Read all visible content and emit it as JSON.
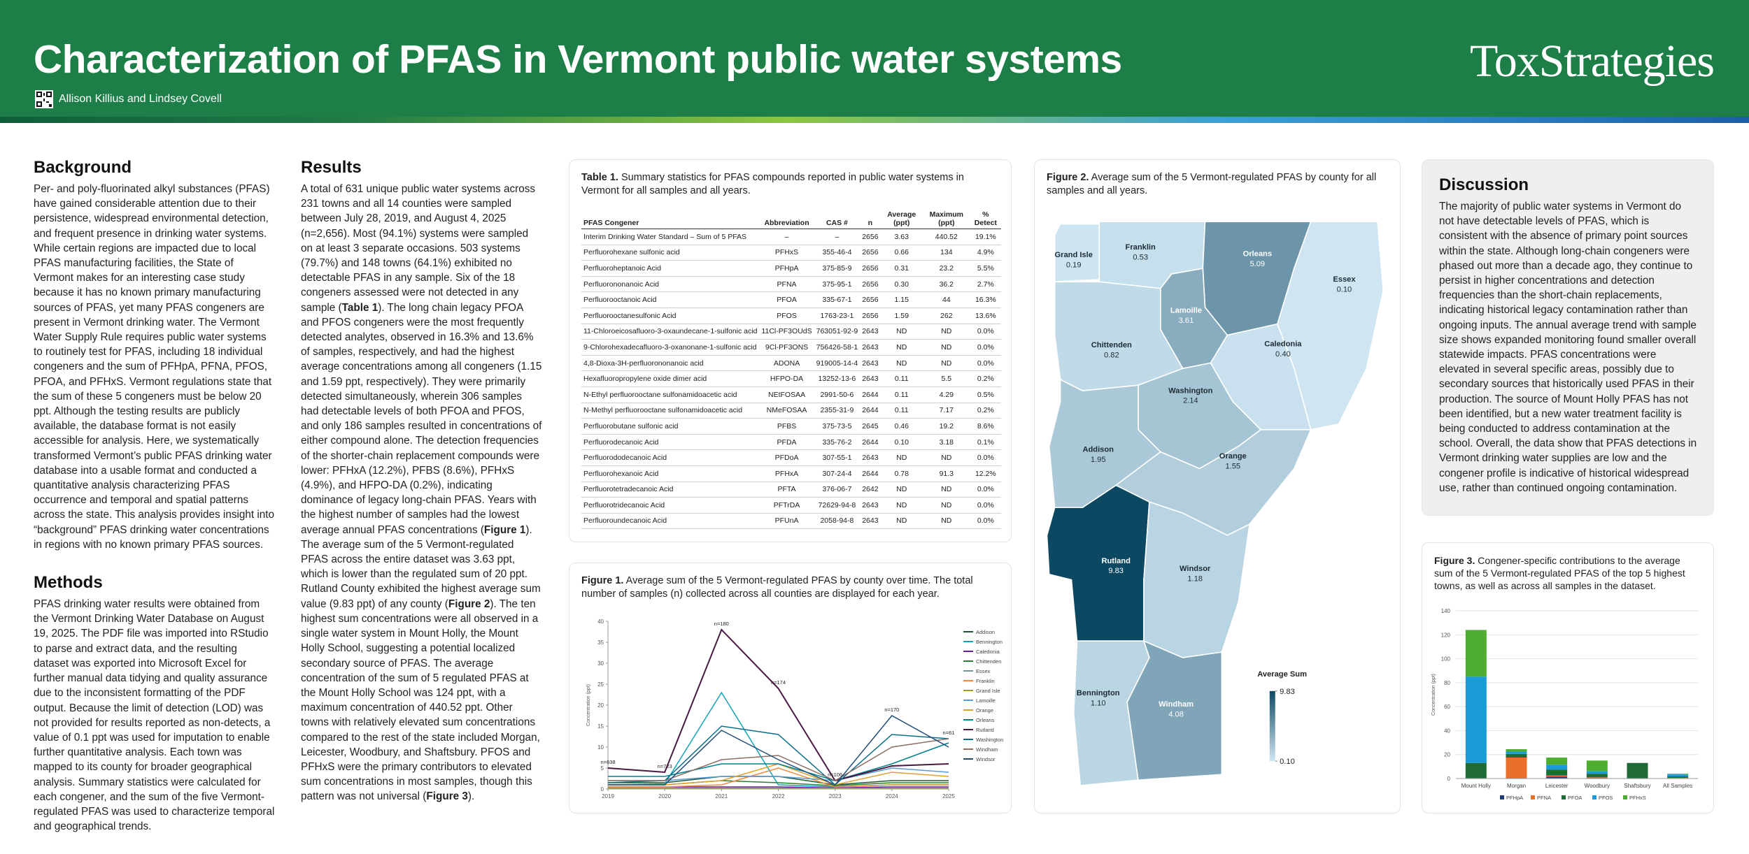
{
  "header": {
    "title": "Characterization of PFAS in Vermont public water systems",
    "authors": "Allison Killius and Lindsey Covell",
    "logo": "ToxStrategies"
  },
  "background": {
    "heading": "Background",
    "text": "Per- and poly-fluorinated alkyl substances (PFAS) have gained considerable attention due to their persistence, widespread environmental detection, and frequent presence in drinking water systems. While certain regions are impacted due to local PFAS manufacturing facilities, the State of Vermont makes for an interesting case study because it has no known primary manufacturing sources of PFAS, yet many PFAS congeners are present in Vermont drinking water.  The Vermont Water Supply Rule requires public water systems to routinely test for PFAS, including 18 individual congeners and the sum of PFHpA, PFNA, PFOS, PFOA, and PFHxS. Vermont regulations state that the sum of these 5 congeners must be below 20 ppt. Although the testing results are publicly available, the database format is not easily accessible for analysis. Here, we systematically transformed Vermont’s public PFAS drinking water database into a usable format and conducted a quantitative analysis characterizing PFAS occurrence and temporal and spatial patterns across the state. This analysis provides insight into “background” PFAS drinking water concentrations in regions with no known primary PFAS sources."
  },
  "methods": {
    "heading": "Methods",
    "text": "PFAS drinking water results were obtained from the Vermont Drinking Water Database on August 19, 2025. The PDF file was imported into RStudio to parse and extract data, and the resulting dataset was exported into Microsoft Excel for further manual data tidying and quality assurance due to the inconsistent formatting of the PDF output. Because the limit of detection (LOD) was not provided for results reported as non-detects, a value of 0.1 ppt was used for imputation to enable further quantitative analysis. Each town was mapped to its county for broader geographical analysis. Summary statistics were calculated for each congener, and the sum of the five Vermont-regulated PFAS was used to characterize temporal and geographical trends."
  },
  "results": {
    "heading": "Results",
    "text": [
      "A total of 631 unique public water systems across 231 towns and all 14 counties were sampled between July 28, 2019, and August 4, 2025 (n=2,656). Most (94.1%) systems were sampled on at least 3 separate occasions. 503 systems (79.7%) and 148 towns (64.1%) exhibited no detectable PFAS in any sample. Six of the 18 congeners assessed were not detected in any sample (",
      "Table 1",
      "). The long chain legacy PFOA and PFOS congeners were the most frequently detected analytes, observed in 16.3% and 13.6% of samples, respectively, and had the highest average concentrations among all congeners (1.15 and 1.59 ppt, respectively). They were primarily detected simultaneously, wherein 306 samples had detectable levels of both PFOA and PFOS, and only 186 samples resulted in concentrations of either compound alone. The detection frequencies of the shorter-chain replacement compounds were lower: PFHxA (12.2%), PFBS (8.6%), PFHxS (4.9%), and HFPO-DA (0.2%), indicating dominance of legacy long-chain PFAS. Years with the highest number of samples had the lowest average annual PFAS concentrations (",
      "Figure 1",
      "). The average sum of the 5 Vermont-regulated PFAS across the entire dataset was 3.63 ppt, which is lower than the regulated sum of 20 ppt. Rutland County exhibited the highest average sum value (9.83 ppt) of any county (",
      "Figure 2",
      "). The ten highest sum concentrations were all observed in a single water system in Mount Holly, the Mount Holly School, suggesting a potential localized secondary source of PFAS. The average concentration of the sum of 5 regulated PFAS at the Mount Holly School was 124 ppt, with a maximum concentration of 440.52 ppt. Other towns with relatively elevated sum concentrations compared to the rest of the state included Morgan, Leicester, Woodbury, and Shaftsbury. PFOS and PFHxS were the primary contributors to elevated sum concentrations in most samples, though this pattern was not universal (",
      "Figure 3",
      ")."
    ]
  },
  "discussion": {
    "heading": "Discussion",
    "text": "The majority of public water systems in Vermont do not have detectable levels of PFAS, which is consistent with the absence of primary point sources within the state. Although long-chain congeners were phased out more than a decade ago, they continue to persist in higher concentrations and detection frequencies than the short-chain replacements, indicating historical legacy contamination rather than ongoing inputs. The annual average trend with sample size shows expanded monitoring found smaller overall statewide impacts. PFAS concentrations were elevated in several specific areas, possibly due to secondary sources that historically used PFAS in their production. The source of Mount Holly PFAS has not been identified, but a new water treatment facility is being conducted to address contamination at the school. Overall, the data show that PFAS detections in Vermont drinking water supplies are low and the congener profile is indicative of historical widespread use, rather than continued ongoing contamination."
  },
  "table": {
    "caption_label": "Table 1.",
    "caption": "Summary statistics for PFAS compounds reported in public water systems in Vermont for all samples and all years.",
    "columns": [
      "PFAS Congener",
      "Abbreviation",
      "CAS #",
      "n",
      "Average (ppt)",
      "Maximum (ppt)",
      "% Detect"
    ],
    "rows": [
      [
        "Interim Drinking Water Standard – Sum of 5 PFAS",
        "–",
        "–",
        "2656",
        "3.63",
        "440.52",
        "19.1%"
      ],
      [
        "Perfluorohexane sulfonic acid",
        "PFHxS",
        "355-46-4",
        "2656",
        "0.66",
        "134",
        "4.9%"
      ],
      [
        "Perfluoroheptanoic Acid",
        "PFHpA",
        "375-85-9",
        "2656",
        "0.31",
        "23.2",
        "5.5%"
      ],
      [
        "Perfluorononanoic Acid",
        "PFNA",
        "375-95-1",
        "2656",
        "0.30",
        "36.2",
        "2.7%"
      ],
      [
        "Perfluorooctanoic Acid",
        "PFOA",
        "335-67-1",
        "2656",
        "1.15",
        "44",
        "16.3%"
      ],
      [
        "Perfluorooctanesulfonic Acid",
        "PFOS",
        "1763-23-1",
        "2656",
        "1.59",
        "262",
        "13.6%"
      ],
      [
        "11-Chloroeicosafluoro-3-oxaundecane-1-sulfonic acid",
        "11Cl-PF3OUdS",
        "763051-92-9",
        "2643",
        "ND",
        "ND",
        "0.0%"
      ],
      [
        "9-Chlorohexadecafluoro-3-oxanonane-1-sulfonic acid",
        "9Cl-PF3ONS",
        "756426-58-1",
        "2643",
        "ND",
        "ND",
        "0.0%"
      ],
      [
        "4,8-Dioxa-3H-perfluorononanoic acid",
        "ADONA",
        "919005-14-4",
        "2643",
        "ND",
        "ND",
        "0.0%"
      ],
      [
        "Hexafluoropropylene oxide dimer acid",
        "HFPO-DA",
        "13252-13-6",
        "2643",
        "0.11",
        "5.5",
        "0.2%"
      ],
      [
        "N-Ethyl perfluorooctane sulfonamidoacetic acid",
        "NEtFOSAA",
        "2991-50-6",
        "2644",
        "0.11",
        "4.29",
        "0.5%"
      ],
      [
        "N-Methyl perfluorooctane sulfonamidoacetic acid",
        "NMeFOSAA",
        "2355-31-9",
        "2644",
        "0.11",
        "7.17",
        "0.2%"
      ],
      [
        "Perfluorobutane sulfonic acid",
        "PFBS",
        "375-73-5",
        "2645",
        "0.46",
        "19.2",
        "8.6%"
      ],
      [
        "Perfluorodecanoic Acid",
        "PFDA",
        "335-76-2",
        "2644",
        "0.10",
        "3.18",
        "0.1%"
      ],
      [
        "Perfluorododecanoic Acid",
        "PFDoA",
        "307-55-1",
        "2643",
        "ND",
        "ND",
        "0.0%"
      ],
      [
        "Perfluorohexanoic Acid",
        "PFHxA",
        "307-24-4",
        "2644",
        "0.78",
        "91.3",
        "12.2%"
      ],
      [
        "Perfluorotetradecanoic Acid",
        "PFTA",
        "376-06-7",
        "2642",
        "ND",
        "ND",
        "0.0%"
      ],
      [
        "Perfluorotridecanoic Acid",
        "PFTrDA",
        "72629-94-8",
        "2643",
        "ND",
        "ND",
        "0.0%"
      ],
      [
        "Perfluoroundecanoic Acid",
        "PFUnA",
        "2058-94-8",
        "2643",
        "ND",
        "ND",
        "0.0%"
      ]
    ]
  },
  "chart_data": [
    {
      "type": "line",
      "caption_label": "Figure 1.",
      "title": "Average sum of the 5 Vermont-regulated PFAS by county over time. The total number of samples (n) collected across all counties are displayed for each year.",
      "y_label": "Concentration (ppt)",
      "x": [
        2019,
        2020,
        2021,
        2022,
        2023,
        2024,
        2025
      ],
      "xlim": [
        2019,
        2025
      ],
      "xticks": [
        2019,
        2020,
        2021,
        2022,
        2023,
        2024,
        2025
      ],
      "ylim": [
        0,
        40
      ],
      "yticks": [
        0,
        5,
        10,
        15,
        20,
        25,
        30,
        35,
        40
      ],
      "series": [
        {
          "name": "Addison",
          "color": "#1e5631",
          "values": [
            1.5,
            1.5,
            3,
            3,
            1,
            2,
            2
          ]
        },
        {
          "name": "Bennington",
          "color": "#17a2b8",
          "values": [
            1,
            1.2,
            23,
            1,
            0.5,
            1,
            1
          ]
        },
        {
          "name": "Caledonia",
          "color": "#6a1b9a",
          "values": [
            0.5,
            0.5,
            0.5,
            0.5,
            0.3,
            0.5,
            0.5
          ]
        },
        {
          "name": "Chittenden",
          "color": "#2e7d32",
          "values": [
            1,
            1,
            2,
            1.5,
            0.8,
            1.5,
            1.5
          ]
        },
        {
          "name": "Essex",
          "color": "#78909c",
          "values": [
            0.2,
            0.2,
            0.2,
            0.2,
            0.2,
            0.2,
            0.2
          ]
        },
        {
          "name": "Franklin",
          "color": "#ef8a3c",
          "values": [
            0.5,
            0.5,
            1,
            5,
            0.5,
            1,
            1
          ]
        },
        {
          "name": "Grand Isle",
          "color": "#9e9d24",
          "values": [
            0.2,
            0.2,
            0.2,
            0.2,
            0.2,
            0.2,
            0.2
          ]
        },
        {
          "name": "Lamoille",
          "color": "#5c9bd1",
          "values": [
            2,
            2,
            3,
            3,
            2,
            5,
            4
          ]
        },
        {
          "name": "Orange",
          "color": "#e0a030",
          "values": [
            1,
            1,
            2,
            6,
            1,
            4,
            3
          ]
        },
        {
          "name": "Orleans",
          "color": "#00838f",
          "values": [
            3,
            3,
            6,
            6,
            2,
            6,
            11
          ]
        },
        {
          "name": "Rutland",
          "color": "#4a1842",
          "values": [
            5,
            4,
            38,
            24,
            2,
            5.5,
            6
          ]
        },
        {
          "name": "Washington",
          "color": "#0b6e8a",
          "values": [
            1.5,
            2,
            15,
            13,
            1,
            13,
            12
          ]
        },
        {
          "name": "Windham",
          "color": "#8d6e63",
          "values": [
            2,
            2,
            7,
            8,
            2,
            10,
            12
          ]
        },
        {
          "name": "Windsor",
          "color": "#1f4e79",
          "values": [
            1,
            1,
            14,
            7,
            1,
            17.5,
            10
          ]
        }
      ],
      "annotations": [
        {
          "x": 2019,
          "label": "n=638"
        },
        {
          "x": 2020,
          "label": "n=723"
        },
        {
          "x": 2021,
          "label": "n=180"
        },
        {
          "x": 2022,
          "label": "n=174"
        },
        {
          "x": 2023,
          "label": "n=106"
        },
        {
          "x": 2024,
          "label": "n=170"
        },
        {
          "x": 2025,
          "label": "n=61"
        }
      ]
    },
    {
      "type": "choropleth",
      "caption_label": "Figure 2.",
      "title": "Average sum of the 5 Vermont-regulated PFAS by county for all samples and all years.",
      "counties": [
        "Grand Isle",
        "Franklin",
        "Orleans",
        "Essex",
        "Lamoille",
        "Chittenden",
        "Caledonia",
        "Washington",
        "Addison",
        "Orange",
        "Rutland",
        "Windsor",
        "Bennington",
        "Windham"
      ],
      "values": [
        0.19,
        0.53,
        5.09,
        0.1,
        3.61,
        0.82,
        0.4,
        2.14,
        1.95,
        1.55,
        9.83,
        1.18,
        1.1,
        4.08
      ],
      "value_labels": [
        "0.19",
        "0.53",
        "5.09",
        "0.10",
        "3.61",
        "0.82",
        "0.40",
        "2.14",
        "1.95",
        "1.55",
        "9.83",
        "1.18",
        "1.10",
        "4.08"
      ],
      "colorbar": {
        "title": "Average Sum",
        "lim": [
          0.1,
          9.83
        ],
        "ticks": [
          {
            "value": 0.1,
            "label": "0.10"
          },
          9.83
        ]
      }
    },
    {
      "type": "bar",
      "stacked": true,
      "caption_label": "Figure 3.",
      "title": "Congener-specific contributions to the average sum of the 5 Vermont-regulated PFAS of the top 5 highest towns, as well as across all samples in the dataset.",
      "y_label": "Concentration (ppt)",
      "categories": [
        "Mount Holly",
        "Morgan",
        "Leicester",
        "Woodbury",
        "Shaftsbury",
        "All Samples"
      ],
      "ylim": [
        0,
        140
      ],
      "yticks": [
        0,
        20,
        40,
        60,
        80,
        100,
        120,
        140
      ],
      "grid": true,
      "series": [
        {
          "name": "PFHpA",
          "color": "#1f3a6e",
          "values": [
            0,
            0.5,
            1.5,
            0.5,
            0,
            0.31
          ]
        },
        {
          "name": "PFNA",
          "color": "#e8702a",
          "values": [
            0,
            17,
            1,
            0.5,
            0,
            0.3
          ]
        },
        {
          "name": "PFOA",
          "color": "#1e6b35",
          "values": [
            13,
            3,
            5,
            3,
            13,
            1.15
          ]
        },
        {
          "name": "PFOS",
          "color": "#1a9bd7",
          "values": [
            72,
            2,
            4,
            2,
            0,
            1.59
          ]
        },
        {
          "name": "PFHxS",
          "color": "#4fae32",
          "values": [
            39,
            2,
            6,
            9,
            0,
            0.66
          ]
        }
      ]
    }
  ]
}
